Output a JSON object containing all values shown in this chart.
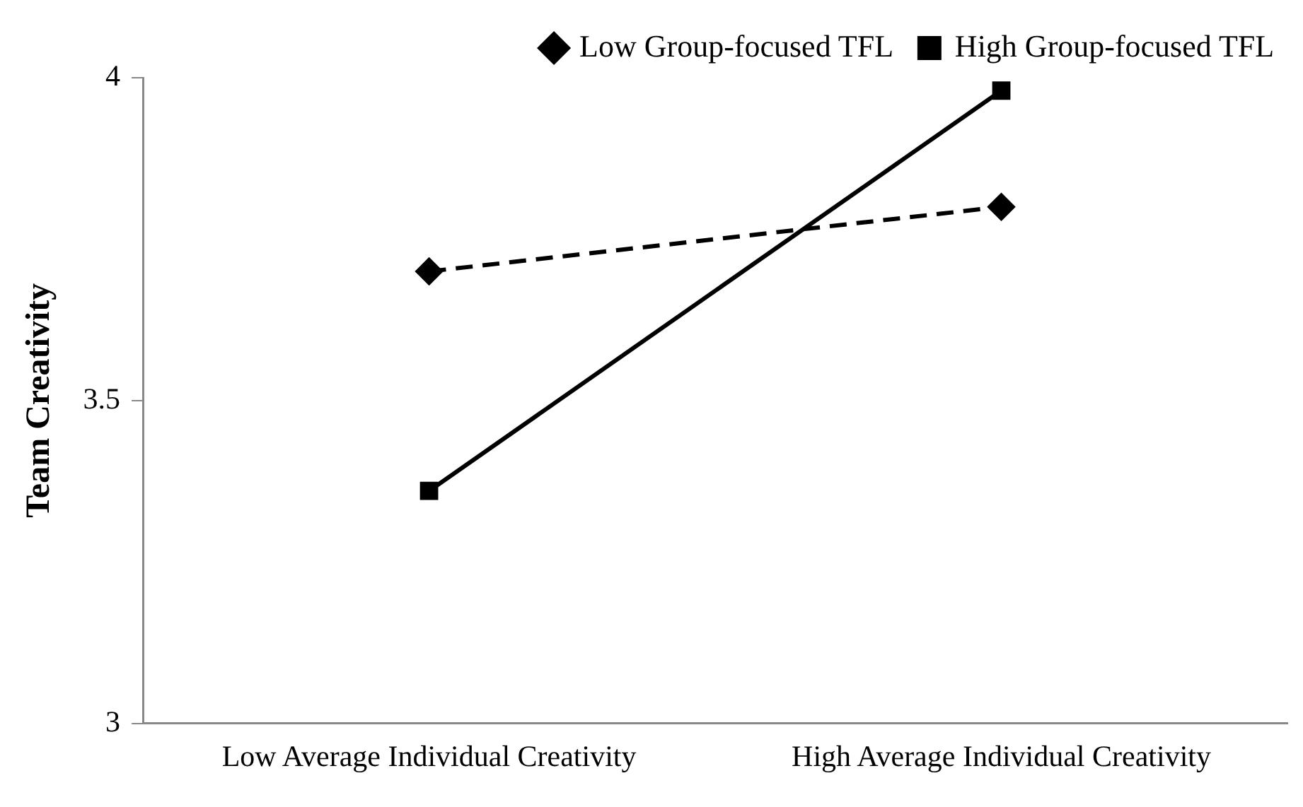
{
  "chart_data": {
    "type": "line",
    "ylabel": "Team Creativity",
    "categories": [
      "Low Average Individual Creativity",
      "High Average Individual Creativity"
    ],
    "series": [
      {
        "name": "Low Group-focused TFL",
        "color": "#000000",
        "values": [
          3.7,
          3.8
        ],
        "marker": "diamond",
        "line_style": "dashed"
      },
      {
        "name": "High Group-focused TFL",
        "color": "#000000",
        "values": [
          3.36,
          3.98
        ],
        "marker": "square",
        "line_style": "solid"
      }
    ],
    "ylim": [
      3,
      4
    ],
    "yticks": [
      3,
      3.5,
      4
    ],
    "grid": false,
    "legend": "top right"
  }
}
